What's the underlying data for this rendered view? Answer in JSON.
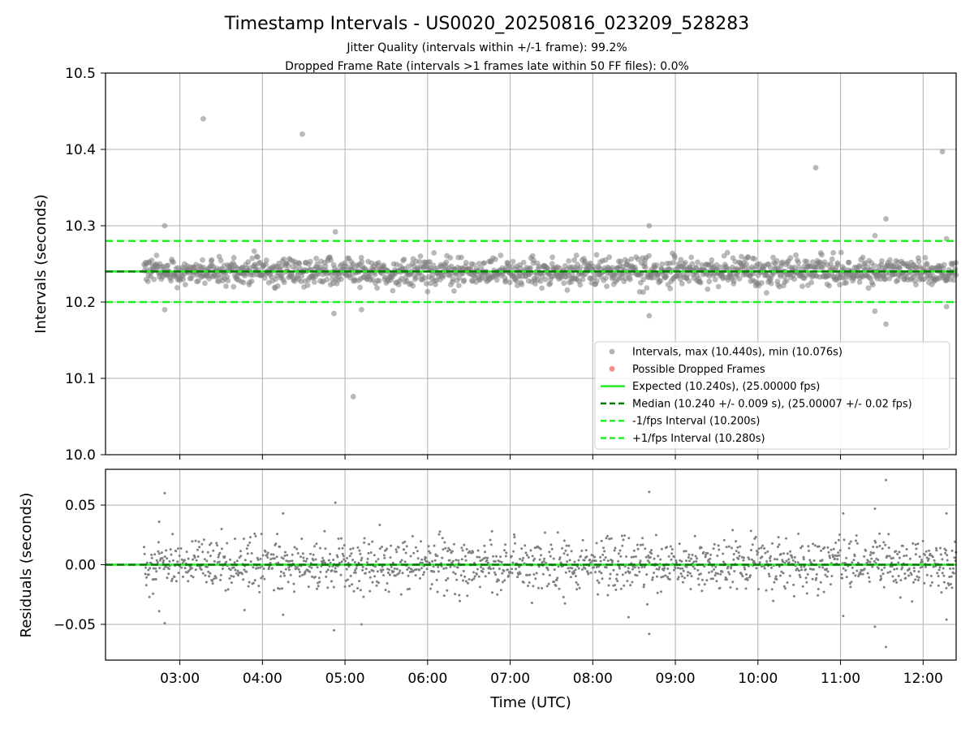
{
  "title": "Timestamp Intervals - US0020_20250816_023209_528283",
  "subtitle_lines": [
    "Jitter Quality (intervals within +/-1 frame): 99.2%",
    "Dropped Frame Rate (intervals >1 frames late within 50 FF files): 0.0%"
  ],
  "colors": {
    "points": "#808080",
    "dropped": "#f04040",
    "expected": "#22ee22",
    "median": "#007700",
    "bound": "#22ee22",
    "grid": "#b0b0b0"
  },
  "chart_data": [
    {
      "id": "intervals",
      "type": "scatter",
      "ylabel": "Intervals (seconds)",
      "x_range": [
        "02:06",
        "12:24"
      ],
      "x_ticks": [
        "03:00",
        "04:00",
        "05:00",
        "06:00",
        "07:00",
        "08:00",
        "09:00",
        "10:00",
        "11:00",
        "12:00"
      ],
      "ylim": [
        10.0,
        10.5
      ],
      "y_ticks": [
        "10.0",
        "10.1",
        "10.2",
        "10.3",
        "10.4",
        "10.5"
      ],
      "grid": true,
      "legend_position": "lower-right",
      "dense_band": {
        "x_start": "02:34",
        "x_end": "12:24",
        "center": 10.24,
        "spread": 0.009
      },
      "outliers": [
        {
          "x": "02:49",
          "y": 10.3
        },
        {
          "x": "02:49",
          "y": 10.19
        },
        {
          "x": "03:17",
          "y": 10.44
        },
        {
          "x": "04:29",
          "y": 10.42
        },
        {
          "x": "04:53",
          "y": 10.292
        },
        {
          "x": "04:52",
          "y": 10.185
        },
        {
          "x": "05:06",
          "y": 10.076
        },
        {
          "x": "05:12",
          "y": 10.19
        },
        {
          "x": "08:41",
          "y": 10.3
        },
        {
          "x": "08:41",
          "y": 10.182
        },
        {
          "x": "10:42",
          "y": 10.376
        },
        {
          "x": "11:33",
          "y": 10.309
        },
        {
          "x": "11:33",
          "y": 10.171
        },
        {
          "x": "11:25",
          "y": 10.287
        },
        {
          "x": "11:25",
          "y": 10.188
        },
        {
          "x": "12:14",
          "y": 10.397
        },
        {
          "x": "12:17",
          "y": 10.283
        },
        {
          "x": "12:17",
          "y": 10.194
        }
      ],
      "lines": {
        "expected": 10.24,
        "median": 10.24,
        "lower": 10.2,
        "upper": 10.28
      },
      "legend": [
        {
          "kind": "point",
          "color_key": "points",
          "label": "Intervals, max (10.440s), min (10.076s)"
        },
        {
          "kind": "point",
          "color_key": "dropped",
          "label": "Possible Dropped Frames"
        },
        {
          "kind": "solid",
          "color_key": "expected",
          "label": "Expected (10.240s), (25.00000 fps)"
        },
        {
          "kind": "dashed",
          "color_key": "median",
          "label": "Median (10.240 +/- 0.009 s), (25.00007 +/- 0.02 fps)"
        },
        {
          "kind": "dashed",
          "color_key": "bound",
          "label": "-1/fps Interval (10.200s)"
        },
        {
          "kind": "dashed",
          "color_key": "bound",
          "label": "+1/fps Interval (10.280s)"
        }
      ]
    },
    {
      "id": "residuals",
      "type": "scatter",
      "xlabel": "Time (UTC)",
      "ylabel": "Residuals (seconds)",
      "x_range": [
        "02:06",
        "12:24"
      ],
      "x_ticks": [
        "03:00",
        "04:00",
        "05:00",
        "06:00",
        "07:00",
        "08:00",
        "09:00",
        "10:00",
        "11:00",
        "12:00"
      ],
      "ylim": [
        -0.08,
        0.08
      ],
      "y_ticks": [
        "0.05",
        "0.00",
        "−0.05"
      ],
      "y_tick_values": [
        0.05,
        0.0,
        -0.05
      ],
      "grid": true,
      "dense_band": {
        "x_start": "02:34",
        "x_end": "12:24",
        "center": 0.0,
        "spread": 0.011
      },
      "outliers": [
        {
          "x": "02:49",
          "y": 0.06
        },
        {
          "x": "02:49",
          "y": -0.049
        },
        {
          "x": "02:45",
          "y": 0.036
        },
        {
          "x": "02:45",
          "y": -0.039
        },
        {
          "x": "04:53",
          "y": 0.052
        },
        {
          "x": "04:52",
          "y": -0.055
        },
        {
          "x": "05:12",
          "y": -0.05
        },
        {
          "x": "03:47",
          "y": -0.038
        },
        {
          "x": "04:15",
          "y": 0.043
        },
        {
          "x": "04:15",
          "y": -0.042
        },
        {
          "x": "08:41",
          "y": 0.061
        },
        {
          "x": "08:41",
          "y": -0.058
        },
        {
          "x": "08:26",
          "y": -0.044
        },
        {
          "x": "11:33",
          "y": 0.071
        },
        {
          "x": "11:33",
          "y": -0.069
        },
        {
          "x": "11:25",
          "y": 0.047
        },
        {
          "x": "11:25",
          "y": -0.052
        },
        {
          "x": "11:02",
          "y": 0.043
        },
        {
          "x": "11:02",
          "y": -0.043
        },
        {
          "x": "12:17",
          "y": 0.043
        },
        {
          "x": "12:17",
          "y": -0.046
        }
      ],
      "lines": {
        "zero_expected": 0.0,
        "zero_median": 0.0
      }
    }
  ]
}
